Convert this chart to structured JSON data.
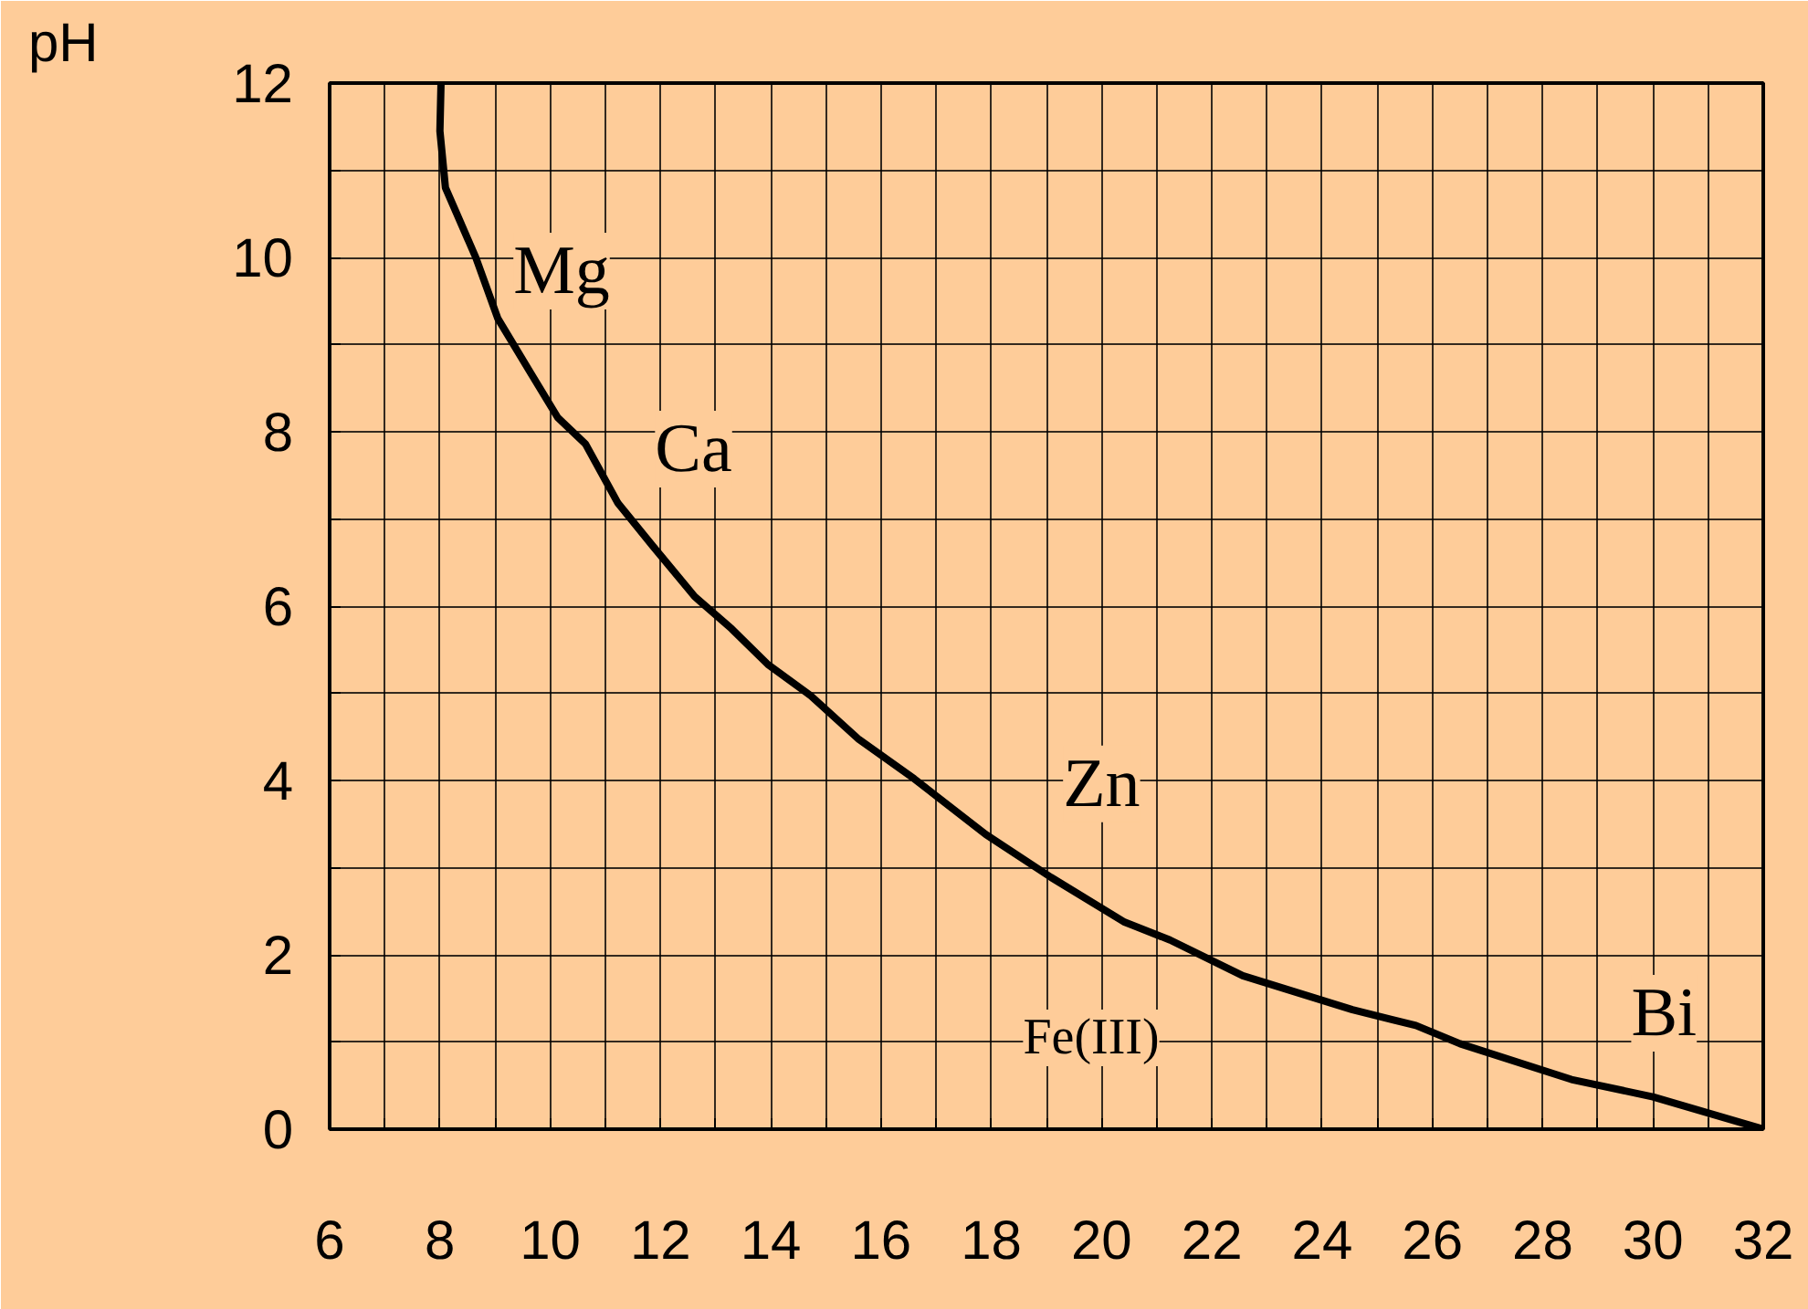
{
  "chart_data": {
    "type": "line",
    "ylabel": "pH",
    "x": [
      8.02,
      8.0,
      8.1,
      8.65,
      9.05,
      9.64,
      10.14,
      10.64,
      11.23,
      11.86,
      12.62,
      13.29,
      13.95,
      14.71,
      15.6,
      16.6,
      17.9,
      19.08,
      20.4,
      21.24,
      22.56,
      24.55,
      25.7,
      26.5,
      28.52,
      30.0,
      32.0
    ],
    "series": [
      {
        "color": "#000000",
        "values": [
          12,
          11.45,
          10.8,
          10.0,
          9.3,
          8.68,
          8.16,
          7.86,
          7.18,
          6.69,
          6.11,
          5.74,
          5.33,
          4.98,
          4.47,
          4.02,
          3.38,
          2.89,
          2.38,
          2.17,
          1.76,
          1.37,
          1.19,
          0.98,
          0.57,
          0.37,
          0.0
        ]
      }
    ],
    "xlim": [
      6,
      32
    ],
    "ylim": [
      0,
      12
    ],
    "xticks": [
      6,
      {
        "value": 7,
        "label": null
      },
      8,
      {
        "value": 9,
        "label": null
      },
      10,
      {
        "value": 11,
        "label": null
      },
      12,
      {
        "value": 13,
        "label": null
      },
      14,
      {
        "value": 15,
        "label": null
      },
      16,
      {
        "value": 17,
        "label": null
      },
      18,
      {
        "value": 19,
        "label": null
      },
      20,
      {
        "value": 21,
        "label": null
      },
      22,
      {
        "value": 23,
        "label": null
      },
      24,
      {
        "value": 25,
        "label": null
      },
      26,
      {
        "value": 27,
        "label": null
      },
      28,
      {
        "value": 29,
        "label": null
      },
      30,
      {
        "value": 31,
        "label": null
      },
      32
    ],
    "yticks": [
      0,
      {
        "value": 1,
        "label": null
      },
      2,
      {
        "value": 3,
        "label": null
      },
      4,
      {
        "value": 5,
        "label": null
      },
      6,
      {
        "value": 7,
        "label": null
      },
      8,
      {
        "value": 9,
        "label": null
      },
      10,
      {
        "value": 11,
        "label": null
      },
      12
    ],
    "annotations": [
      "Mg",
      {
        "text": "Ca",
        "x": 12.6,
        "y": 7.8
      },
      {
        "text": "Zn",
        "x": 20.0,
        "y": 3.96
      },
      "Fe(III)",
      {
        "text": "Bi",
        "x": 30.2,
        "y": 1.33
      }
    ],
    "grid": true,
    "marker": "none",
    "line_style": "solid"
  }
}
